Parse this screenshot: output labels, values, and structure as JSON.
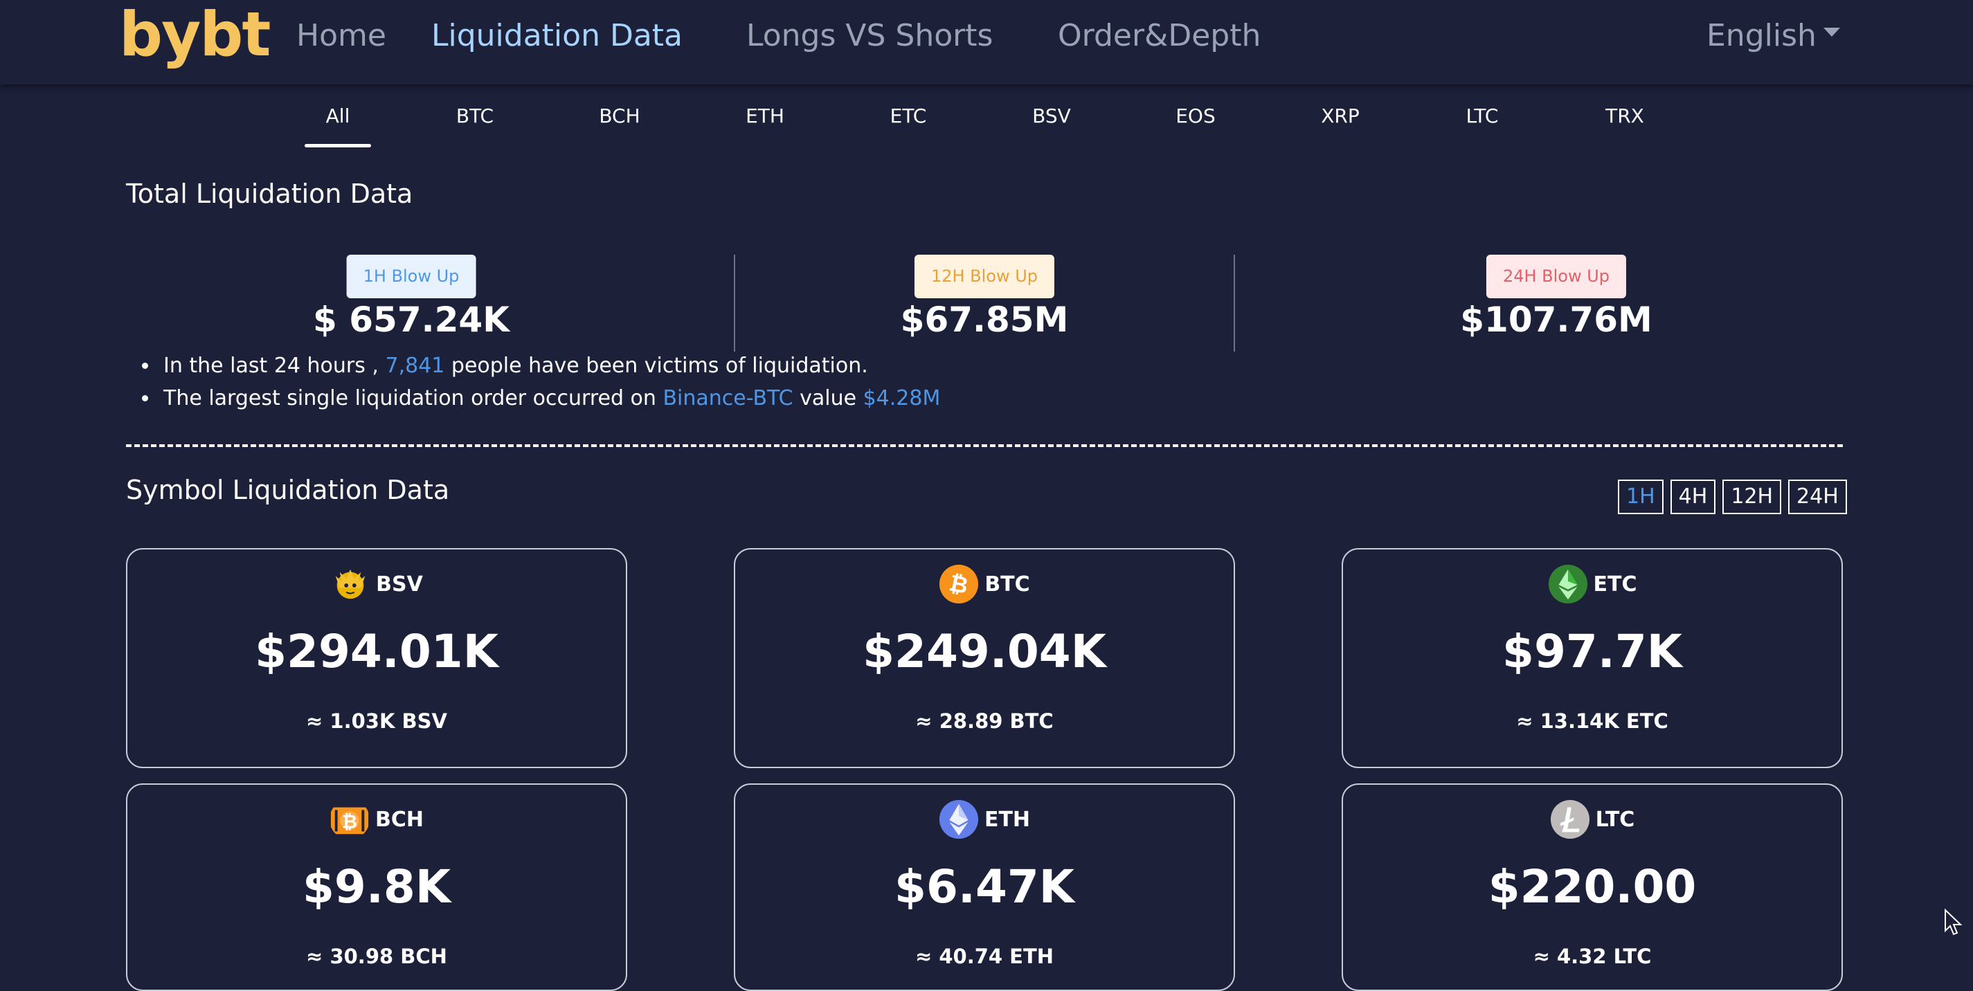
{
  "navbar": {
    "logo": "bybt",
    "links": [
      "Home",
      "Liquidation Data",
      "Longs VS Shorts",
      "Order&Depth"
    ],
    "active_link": "Liquidation Data",
    "language": "English"
  },
  "coin_tabs": {
    "items": [
      "All",
      "BTC",
      "BCH",
      "ETH",
      "ETC",
      "BSV",
      "EOS",
      "XRP",
      "LTC",
      "TRX"
    ],
    "active": "All"
  },
  "total": {
    "title": "Total Liquidation Data",
    "h1_label": "1H Blow Up",
    "h1_value": "$ 657.24K",
    "h12_label": "12H Blow Up",
    "h12_value": "$67.85M",
    "h24_label": "24H Blow Up",
    "h24_value": "$107.76M",
    "line1_pre": "In the last 24 hours , ",
    "line1_count": "7,841",
    "line1_post": " people have been victims of liquidation.",
    "line2_pre": "The largest single liquidation order occurred on ",
    "line2_exchange": "Binance-BTC",
    "line2_mid": " value ",
    "line2_value": "$4.28M"
  },
  "symbol": {
    "title": "Symbol Liquidation Data",
    "time_filters": [
      "1H",
      "4H",
      "12H",
      "24H"
    ],
    "active_filter": "1H",
    "cards": [
      {
        "symbol": "BSV",
        "amount": "$294.01K",
        "approx": "≈ 1.03K BSV",
        "icon": "bsv-icon",
        "color": "#eab300"
      },
      {
        "symbol": "BTC",
        "amount": "$249.04K",
        "approx": "≈ 28.89 BTC",
        "icon": "bitcoin-icon",
        "color": "#f7931a"
      },
      {
        "symbol": "ETC",
        "amount": "$97.7K",
        "approx": "≈ 13.14K ETC",
        "icon": "ethereum-classic-icon",
        "color": "#3ab83a"
      },
      {
        "symbol": "BCH",
        "amount": "$9.8K",
        "approx": "≈ 30.98 BCH",
        "icon": "bitcoin-cash-icon",
        "color": "#f7931a"
      },
      {
        "symbol": "ETH",
        "amount": "$6.47K",
        "approx": "≈ 40.74 ETH",
        "icon": "ethereum-icon",
        "color": "#627eea"
      },
      {
        "symbol": "LTC",
        "amount": "$220.00",
        "approx": "≈ 4.32 LTC",
        "icon": "litecoin-icon",
        "color": "#bfbbbb"
      }
    ]
  },
  "colors": {
    "background": "#1c2039",
    "logo": "#f5c45e",
    "nav_inactive": "#9aa3b5",
    "nav_active": "#a7d3ff",
    "highlight_blue": "#4f97e6"
  }
}
